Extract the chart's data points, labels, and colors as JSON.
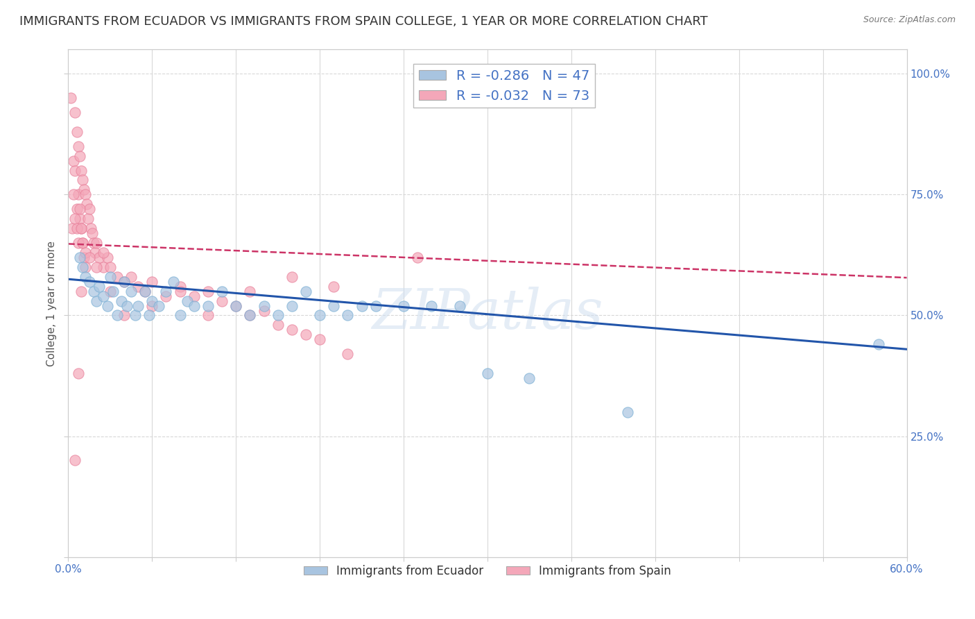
{
  "title": "IMMIGRANTS FROM ECUADOR VS IMMIGRANTS FROM SPAIN COLLEGE, 1 YEAR OR MORE CORRELATION CHART",
  "source": "Source: ZipAtlas.com",
  "ylabel": "College, 1 year or more",
  "right_yticks": [
    "100.0%",
    "75.0%",
    "50.0%",
    "25.0%"
  ],
  "right_ytick_vals": [
    1.0,
    0.75,
    0.5,
    0.25
  ],
  "legend_ecuador": "R = -0.286   N = 47",
  "legend_spain": "R = -0.032   N = 73",
  "ecuador_color": "#a8c4e0",
  "spain_color": "#f4a7b9",
  "ecuador_edge_color": "#7aafd4",
  "spain_edge_color": "#e8809a",
  "ecuador_line_color": "#2255aa",
  "spain_line_color": "#cc3366",
  "watermark": "ZIPatlas",
  "ecuador_scatter_x": [
    0.008,
    0.01,
    0.012,
    0.015,
    0.018,
    0.02,
    0.022,
    0.025,
    0.028,
    0.03,
    0.032,
    0.035,
    0.038,
    0.04,
    0.042,
    0.045,
    0.048,
    0.05,
    0.055,
    0.058,
    0.06,
    0.065,
    0.07,
    0.075,
    0.08,
    0.085,
    0.09,
    0.1,
    0.11,
    0.12,
    0.13,
    0.14,
    0.15,
    0.16,
    0.17,
    0.18,
    0.19,
    0.2,
    0.21,
    0.22,
    0.24,
    0.26,
    0.28,
    0.3,
    0.33,
    0.4,
    0.58
  ],
  "ecuador_scatter_y": [
    0.62,
    0.6,
    0.58,
    0.57,
    0.55,
    0.53,
    0.56,
    0.54,
    0.52,
    0.58,
    0.55,
    0.5,
    0.53,
    0.57,
    0.52,
    0.55,
    0.5,
    0.52,
    0.55,
    0.5,
    0.53,
    0.52,
    0.55,
    0.57,
    0.5,
    0.53,
    0.52,
    0.52,
    0.55,
    0.52,
    0.5,
    0.52,
    0.5,
    0.52,
    0.55,
    0.5,
    0.52,
    0.5,
    0.52,
    0.52,
    0.52,
    0.52,
    0.52,
    0.38,
    0.37,
    0.3,
    0.44
  ],
  "spain_scatter_x": [
    0.002,
    0.003,
    0.004,
    0.005,
    0.005,
    0.006,
    0.006,
    0.007,
    0.007,
    0.008,
    0.008,
    0.009,
    0.009,
    0.01,
    0.01,
    0.011,
    0.011,
    0.012,
    0.012,
    0.013,
    0.014,
    0.015,
    0.016,
    0.017,
    0.018,
    0.019,
    0.02,
    0.022,
    0.025,
    0.028,
    0.03,
    0.035,
    0.04,
    0.045,
    0.05,
    0.055,
    0.06,
    0.07,
    0.08,
    0.09,
    0.1,
    0.11,
    0.12,
    0.13,
    0.14,
    0.15,
    0.16,
    0.17,
    0.18,
    0.2,
    0.004,
    0.005,
    0.006,
    0.007,
    0.008,
    0.009,
    0.01,
    0.012,
    0.015,
    0.02,
    0.025,
    0.03,
    0.04,
    0.06,
    0.08,
    0.1,
    0.13,
    0.16,
    0.19,
    0.25,
    0.005,
    0.007,
    0.009
  ],
  "spain_scatter_y": [
    0.95,
    0.68,
    0.82,
    0.92,
    0.8,
    0.88,
    0.72,
    0.85,
    0.75,
    0.83,
    0.7,
    0.8,
    0.68,
    0.78,
    0.65,
    0.76,
    0.62,
    0.75,
    0.6,
    0.73,
    0.7,
    0.72,
    0.68,
    0.67,
    0.65,
    0.63,
    0.65,
    0.62,
    0.6,
    0.62,
    0.6,
    0.58,
    0.57,
    0.58,
    0.56,
    0.55,
    0.57,
    0.54,
    0.56,
    0.54,
    0.55,
    0.53,
    0.52,
    0.5,
    0.51,
    0.48,
    0.47,
    0.46,
    0.45,
    0.42,
    0.75,
    0.7,
    0.68,
    0.65,
    0.72,
    0.68,
    0.65,
    0.63,
    0.62,
    0.6,
    0.63,
    0.55,
    0.5,
    0.52,
    0.55,
    0.5,
    0.55,
    0.58,
    0.56,
    0.62,
    0.2,
    0.38,
    0.55
  ],
  "xlim": [
    0.0,
    0.6
  ],
  "ylim": [
    0.0,
    1.05
  ],
  "ecuador_trend_x": [
    0.0,
    0.6
  ],
  "ecuador_trend_y": [
    0.575,
    0.43
  ],
  "spain_trend_x": [
    0.0,
    0.6
  ],
  "spain_trend_y": [
    0.648,
    0.578
  ],
  "background_color": "#ffffff",
  "grid_color": "#d8d8d8",
  "title_fontsize": 13,
  "axis_label_fontsize": 11,
  "tick_fontsize": 11,
  "legend_fontsize": 14,
  "scatter_size": 120
}
